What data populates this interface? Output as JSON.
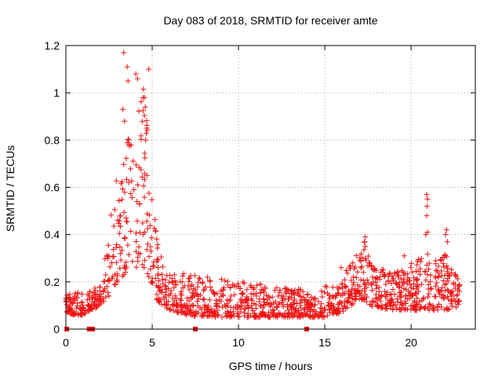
{
  "chart_data": {
    "type": "scatter",
    "title": "Day 083 of 2018, SRMTID for receiver amte",
    "xlabel": "GPS time / hours",
    "ylabel": "SRMTID / TECUs",
    "xlim": [
      0,
      23.72
    ],
    "ylim": [
      0,
      1.2
    ],
    "xticks": [
      0,
      5,
      10,
      15,
      20
    ],
    "xtick_labels": [
      "0",
      "5",
      "10",
      "15",
      "20"
    ],
    "yticks": [
      0,
      0.2,
      0.4,
      0.6,
      0.8,
      1,
      1.2
    ],
    "ytick_labels": [
      "0",
      "0.2",
      "0.4",
      "0.6",
      "0.8",
      "1",
      "1.2"
    ],
    "grid": true,
    "marker": "+",
    "color": "#ee1111",
    "series_envelope": {
      "x": [
        0.0,
        0.5,
        1.0,
        1.5,
        2.0,
        2.5,
        3.0,
        3.3,
        3.5,
        3.8,
        4.0,
        4.3,
        4.5,
        4.8,
        5.0,
        5.3,
        5.6,
        6.0,
        7.0,
        8.0,
        9.0,
        10.0,
        11.0,
        12.0,
        13.0,
        14.0,
        15.0,
        16.0,
        16.5,
        17.0,
        17.3,
        17.6,
        18.0,
        19.0,
        20.0,
        20.5,
        21.0,
        21.5,
        22.0,
        22.5,
        22.8
      ],
      "low": [
        0.07,
        0.06,
        0.06,
        0.08,
        0.1,
        0.14,
        0.2,
        0.22,
        0.24,
        0.22,
        0.24,
        0.26,
        0.26,
        0.22,
        0.18,
        0.12,
        0.1,
        0.08,
        0.06,
        0.05,
        0.05,
        0.05,
        0.05,
        0.05,
        0.05,
        0.05,
        0.05,
        0.07,
        0.1,
        0.12,
        0.12,
        0.1,
        0.09,
        0.08,
        0.08,
        0.08,
        0.08,
        0.08,
        0.08,
        0.08,
        0.1
      ],
      "high": [
        0.14,
        0.16,
        0.16,
        0.16,
        0.2,
        0.42,
        0.7,
        0.95,
        0.85,
        0.8,
        0.8,
        1.0,
        1.02,
        0.9,
        0.55,
        0.4,
        0.28,
        0.25,
        0.24,
        0.22,
        0.22,
        0.2,
        0.2,
        0.18,
        0.18,
        0.16,
        0.18,
        0.22,
        0.3,
        0.34,
        0.38,
        0.3,
        0.26,
        0.24,
        0.28,
        0.3,
        0.32,
        0.3,
        0.32,
        0.24,
        0.2
      ],
      "density": 1400
    },
    "outliers": [
      {
        "x": 3.35,
        "y": 1.17
      },
      {
        "x": 3.55,
        "y": 1.11
      },
      {
        "x": 3.6,
        "y": 1.05
      },
      {
        "x": 4.05,
        "y": 1.08
      },
      {
        "x": 4.15,
        "y": 1.06
      },
      {
        "x": 4.8,
        "y": 1.1
      },
      {
        "x": 4.55,
        "y": 0.98
      },
      {
        "x": 3.3,
        "y": 0.93
      },
      {
        "x": 4.6,
        "y": 0.94
      },
      {
        "x": 3.4,
        "y": 0.88
      },
      {
        "x": 20.9,
        "y": 0.57
      },
      {
        "x": 20.95,
        "y": 0.55
      },
      {
        "x": 20.92,
        "y": 0.52
      },
      {
        "x": 20.9,
        "y": 0.48
      },
      {
        "x": 20.95,
        "y": 0.41
      },
      {
        "x": 20.85,
        "y": 0.4
      },
      {
        "x": 22.05,
        "y": 0.42
      },
      {
        "x": 22.0,
        "y": 0.4
      },
      {
        "x": 22.1,
        "y": 0.37
      },
      {
        "x": 17.35,
        "y": 0.39
      },
      {
        "x": 17.3,
        "y": 0.37
      },
      {
        "x": 15.95,
        "y": 0.26
      },
      {
        "x": 19.6,
        "y": 0.31
      }
    ],
    "baseline_markers": [
      {
        "x": 0.05,
        "y": 0
      },
      {
        "x": 1.35,
        "y": 0
      },
      {
        "x": 1.55,
        "y": 0
      },
      {
        "x": 7.5,
        "y": 0
      },
      {
        "x": 13.95,
        "y": 0
      }
    ]
  }
}
